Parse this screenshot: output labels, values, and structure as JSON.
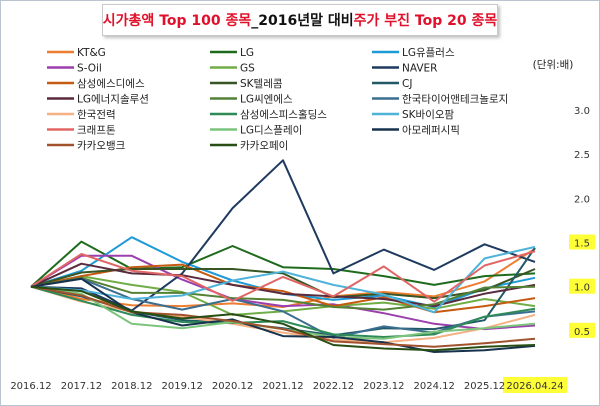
{
  "title": {
    "part1": "시가총액 Top 100 종목",
    "part2": "_2016년말 대비 ",
    "part3": "주가 부진 Top 20 종목"
  },
  "chart_data": {
    "type": "line",
    "unit_label": "(단위:배)",
    "categories": [
      "2016.12",
      "2017.12",
      "2018.12",
      "2019.12",
      "2020.12",
      "2021.12",
      "2022.12",
      "2023.12",
      "2024.12",
      "2025.12",
      "2026.04.24"
    ],
    "highlighted_category": "2026.04.24",
    "ylim": [
      0,
      3.0
    ],
    "yticks": [
      0.5,
      1.0,
      1.5,
      2.0,
      2.5,
      3.0
    ],
    "ytick_labels": [
      "0.5",
      "1.0",
      "1.5",
      "2.0",
      "2.5",
      "3.0"
    ],
    "highlighted_yticks": [
      "0.5",
      "1.0",
      "1.5"
    ],
    "grid": false,
    "legend_position": "top-left",
    "series": [
      {
        "name": "KT&G",
        "color": "#ed7d31",
        "values": [
          1.0,
          0.86,
          0.79,
          0.78,
          0.81,
          0.77,
          0.89,
          0.94,
          0.89,
          1.06,
          1.43
        ]
      },
      {
        "name": "LG",
        "color": "#1e6b1e",
        "values": [
          1.0,
          1.51,
          1.2,
          1.22,
          1.46,
          1.22,
          1.2,
          1.12,
          1.02,
          1.12,
          1.15
        ]
      },
      {
        "name": "LG유플러스",
        "color": "#1e9ad6",
        "values": [
          1.0,
          1.18,
          1.56,
          1.28,
          1.07,
          0.92,
          0.85,
          0.9,
          0.77,
          0.98,
          1.1
        ]
      },
      {
        "name": "S-Oil",
        "color": "#9b3fae",
        "values": [
          1.0,
          1.35,
          1.35,
          1.08,
          0.86,
          0.78,
          0.8,
          0.7,
          0.58,
          0.52,
          0.56
        ]
      },
      {
        "name": "GS",
        "color": "#70ad47",
        "values": [
          1.0,
          1.12,
          1.02,
          0.94,
          0.68,
          0.72,
          0.78,
          0.82,
          0.75,
          0.86,
          0.78
        ]
      },
      {
        "name": "NAVER",
        "color": "#1f3a5f",
        "values": [
          1.0,
          0.98,
          0.73,
          1.15,
          1.89,
          2.43,
          1.15,
          1.42,
          1.19,
          1.48,
          1.28
        ]
      },
      {
        "name": "삼성에스디에스",
        "color": "#c55a11",
        "values": [
          1.0,
          1.12,
          1.22,
          1.25,
          1.02,
          0.95,
          0.78,
          0.88,
          0.71,
          0.78,
          0.87
        ]
      },
      {
        "name": "SK텔레콤",
        "color": "#375623",
        "values": [
          1.0,
          1.16,
          1.2,
          1.2,
          1.2,
          1.15,
          0.88,
          0.92,
          0.87,
          0.96,
          1.2
        ]
      },
      {
        "name": "CJ",
        "color": "#215967",
        "values": [
          1.0,
          0.89,
          0.72,
          0.62,
          0.59,
          0.53,
          0.45,
          0.53,
          0.52,
          0.62,
          1.44
        ]
      },
      {
        "name": "LG에너지솔루션",
        "color": "#5a2a3e",
        "values": [
          1.0,
          1.26,
          1.15,
          1.13,
          1.02,
          0.92,
          0.89,
          0.86,
          0.78,
          0.92,
          1.02
        ]
      },
      {
        "name": "LG씨엔에스",
        "color": "#548235",
        "values": [
          1.0,
          1.1,
          0.93,
          0.93,
          0.87,
          0.85,
          0.77,
          0.74,
          0.8,
          0.99,
          1.0
        ]
      },
      {
        "name": "한국타이어앤테크놀로지",
        "color": "#3b6e8f",
        "values": [
          1.0,
          1.09,
          0.86,
          0.74,
          0.86,
          0.72,
          0.42,
          0.55,
          0.48,
          0.66,
          0.72
        ]
      },
      {
        "name": "한국전력",
        "color": "#f4b183",
        "values": [
          1.0,
          0.83,
          0.72,
          0.66,
          0.58,
          0.48,
          0.4,
          0.37,
          0.42,
          0.53,
          0.68
        ]
      },
      {
        "name": "삼성에스피스홀딩스",
        "color": "#2e8b57",
        "values": [
          1.0,
          0.84,
          0.68,
          0.6,
          0.59,
          0.61,
          0.46,
          0.43,
          0.46,
          0.66,
          0.75
        ]
      },
      {
        "name": "SK바이오팜",
        "color": "#4fb3d9",
        "values": [
          1.0,
          0.96,
          0.86,
          0.9,
          1.07,
          1.17,
          1.02,
          0.91,
          0.71,
          1.32,
          1.45
        ]
      },
      {
        "name": "크래프톤",
        "color": "#e06666",
        "values": [
          1.0,
          1.37,
          1.18,
          1.12,
          0.84,
          1.11,
          0.89,
          1.23,
          0.83,
          1.24,
          1.4
        ]
      },
      {
        "name": "LG디스플레이",
        "color": "#7cc47c",
        "values": [
          1.0,
          0.92,
          0.58,
          0.53,
          0.6,
          0.52,
          0.43,
          0.41,
          0.49,
          0.53,
          0.58
        ]
      },
      {
        "name": "아모레퍼시픽",
        "color": "#17324d",
        "values": [
          1.0,
          1.09,
          0.71,
          0.56,
          0.63,
          0.44,
          0.43,
          0.37,
          0.26,
          0.28,
          0.33
        ]
      },
      {
        "name": "카카오뱅크",
        "color": "#a0522d",
        "values": [
          1.0,
          0.9,
          0.71,
          0.68,
          0.61,
          0.52,
          0.38,
          0.35,
          0.32,
          0.36,
          0.41
        ]
      },
      {
        "name": "카카오페이",
        "color": "#274e13",
        "values": [
          1.0,
          0.95,
          0.72,
          0.64,
          0.69,
          0.58,
          0.34,
          0.3,
          0.28,
          0.32,
          0.34
        ]
      }
    ]
  }
}
